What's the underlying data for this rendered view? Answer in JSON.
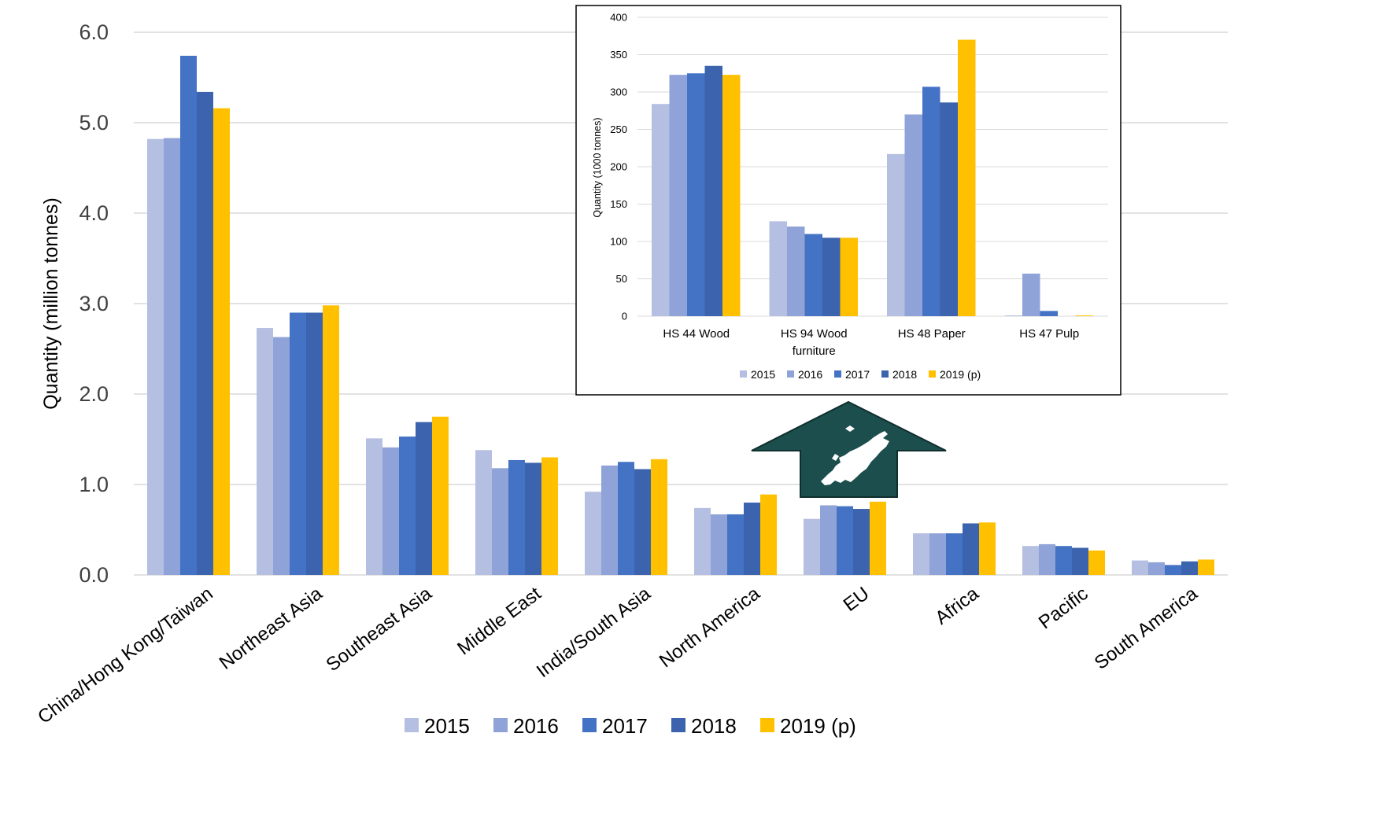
{
  "colors": {
    "2015": "#b4bfe1",
    "2016": "#8fa3d8",
    "2017": "#4472c4",
    "2018": "#3c63ad",
    "2019 (p)": "#ffc000",
    "arrow": "#1b4e4c",
    "grid": "#d9d9d9",
    "axis_text": "#404040"
  },
  "icons": {
    "arrow": "up-arrow-icon",
    "map": "europe-map-icon"
  },
  "chart_data": [
    {
      "type": "bar",
      "title": "",
      "xlabel": "",
      "ylabel": "Quantity (million tonnes)",
      "ylim": [
        0,
        6
      ],
      "y_ticks": [
        "0.0",
        "1.0",
        "2.0",
        "3.0",
        "4.0",
        "5.0",
        "6.0"
      ],
      "grid": true,
      "legend_position": "bottom",
      "categories": [
        "China/Hong Kong/Taiwan",
        "Northeast Asia",
        "Southeast Asia",
        "Middle East",
        "India/South Asia",
        "North America",
        "EU",
        "Africa",
        "Pacific",
        "South America"
      ],
      "series": [
        {
          "name": "2015",
          "values": [
            4.82,
            2.73,
            1.51,
            1.38,
            0.92,
            0.74,
            0.62,
            0.46,
            0.32,
            0.16
          ]
        },
        {
          "name": "2016",
          "values": [
            4.83,
            2.63,
            1.41,
            1.18,
            1.21,
            0.67,
            0.77,
            0.46,
            0.34,
            0.14
          ]
        },
        {
          "name": "2017",
          "values": [
            5.74,
            2.9,
            1.53,
            1.27,
            1.25,
            0.67,
            0.76,
            0.46,
            0.32,
            0.11
          ]
        },
        {
          "name": "2018",
          "values": [
            5.34,
            2.9,
            1.69,
            1.24,
            1.17,
            0.8,
            0.73,
            0.57,
            0.3,
            0.15
          ]
        },
        {
          "name": "2019 (p)",
          "values": [
            5.16,
            2.98,
            1.75,
            1.3,
            1.28,
            0.89,
            0.81,
            0.58,
            0.27,
            0.17
          ]
        }
      ]
    },
    {
      "type": "bar",
      "title": "",
      "xlabel": "",
      "ylabel": "Quantity (1000 tonnes)",
      "ylim": [
        0,
        400
      ],
      "y_ticks": [
        "0",
        "50",
        "100",
        "150",
        "200",
        "250",
        "300",
        "350",
        "400"
      ],
      "grid": true,
      "legend_position": "bottom",
      "categories": [
        [
          "HS 44 Wood"
        ],
        [
          "HS 94 Wood",
          "furniture"
        ],
        [
          "HS 48 Paper"
        ],
        [
          "HS 47 Pulp"
        ]
      ],
      "series": [
        {
          "name": "2015",
          "values": [
            284,
            127,
            217,
            1
          ]
        },
        {
          "name": "2016",
          "values": [
            323,
            120,
            270,
            57
          ]
        },
        {
          "name": "2017",
          "values": [
            325,
            110,
            307,
            7
          ]
        },
        {
          "name": "2018",
          "values": [
            335,
            105,
            286,
            0
          ]
        },
        {
          "name": "2019 (p)",
          "values": [
            323,
            105,
            370,
            1
          ]
        }
      ]
    }
  ]
}
